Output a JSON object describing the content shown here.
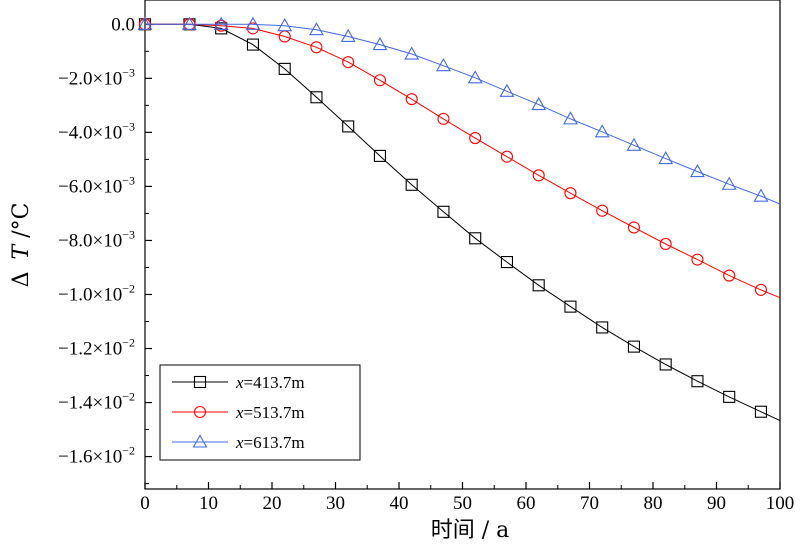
{
  "chart_data": {
    "type": "line",
    "xlabel": "时间 / a",
    "ylabel": {
      "prefix": "Δ",
      "var": "T",
      "unit": "/°C"
    },
    "xlim": [
      0,
      100
    ],
    "ylim": [
      -0.0172,
      0.0009
    ],
    "x_ticks": [
      {
        "v": 0,
        "label": "0"
      },
      {
        "v": 10,
        "label": "10"
      },
      {
        "v": 20,
        "label": "20"
      },
      {
        "v": 30,
        "label": "30"
      },
      {
        "v": 40,
        "label": "40"
      },
      {
        "v": 50,
        "label": "50"
      },
      {
        "v": 60,
        "label": "60"
      },
      {
        "v": 70,
        "label": "70"
      },
      {
        "v": 80,
        "label": "80"
      },
      {
        "v": 90,
        "label": "90"
      },
      {
        "v": 100,
        "label": "100"
      }
    ],
    "y_ticks": [
      {
        "v": 0,
        "label": "0.0",
        "exp": ""
      },
      {
        "v": -0.002,
        "label": "−2.0×10",
        "exp": "−3"
      },
      {
        "v": -0.004,
        "label": "−4.0×10",
        "exp": "−3"
      },
      {
        "v": -0.006,
        "label": "−6.0×10",
        "exp": "−3"
      },
      {
        "v": -0.008,
        "label": "−8.0×10",
        "exp": "−3"
      },
      {
        "v": -0.01,
        "label": "−1.0×10",
        "exp": "−2"
      },
      {
        "v": -0.012,
        "label": "−1.2×10",
        "exp": "−2"
      },
      {
        "v": -0.014,
        "label": "−1.4×10",
        "exp": "−2"
      },
      {
        "v": -0.016,
        "label": "−1.6×10",
        "exp": "−2"
      }
    ],
    "legend_position": "bottom-left",
    "series": [
      {
        "name": "x=413.7m",
        "name_var": "x",
        "name_rest": "=413.7m",
        "color": "#000000",
        "marker": "square",
        "x": [
          0,
          7,
          12,
          17,
          22,
          27,
          32,
          37,
          42,
          47,
          52,
          57,
          62,
          67,
          72,
          77,
          82,
          87,
          92,
          97,
          100
        ],
        "y": [
          0,
          0,
          -0.00015,
          -0.00075,
          -0.00165,
          -0.0027,
          -0.00378,
          -0.00487,
          -0.00594,
          -0.00694,
          -0.00792,
          -0.0088,
          -0.00966,
          -0.01045,
          -0.01122,
          -0.01193,
          -0.01259,
          -0.01321,
          -0.01379,
          -0.01434,
          -0.01467
        ],
        "marked": [
          true,
          true,
          true,
          true,
          true,
          true,
          true,
          true,
          true,
          true,
          true,
          true,
          true,
          true,
          true,
          true,
          true,
          true,
          true,
          true,
          false
        ]
      },
      {
        "name": "x=513.7m",
        "name_var": "x",
        "name_rest": "=513.7m",
        "color": "#ff0000",
        "marker": "circle",
        "x": [
          0,
          7,
          12,
          17,
          22,
          27,
          32,
          37,
          42,
          47,
          52,
          57,
          62,
          67,
          72,
          77,
          82,
          87,
          92,
          97,
          100
        ],
        "y": [
          0,
          0,
          -5e-05,
          -0.00015,
          -0.00045,
          -0.00085,
          -0.0014,
          -0.00207,
          -0.00277,
          -0.0035,
          -0.00421,
          -0.0049,
          -0.00559,
          -0.00625,
          -0.0069,
          -0.00752,
          -0.00813,
          -0.00871,
          -0.0093,
          -0.00983,
          -0.01012
        ],
        "marked": [
          true,
          true,
          true,
          true,
          true,
          true,
          true,
          true,
          true,
          true,
          true,
          true,
          true,
          true,
          true,
          true,
          true,
          true,
          true,
          true,
          false
        ]
      },
      {
        "name": "x=613.7m",
        "name_var": "x",
        "name_rest": "=613.7m",
        "color": "#4169e1",
        "marker": "triangle",
        "x": [
          0,
          7,
          12,
          17,
          22,
          27,
          32,
          37,
          42,
          47,
          52,
          57,
          62,
          67,
          72,
          77,
          82,
          87,
          92,
          97,
          100
        ],
        "y": [
          0,
          0,
          0,
          0,
          -5e-05,
          -0.0002,
          -0.00045,
          -0.00075,
          -0.0011,
          -0.00153,
          -0.00198,
          -0.00248,
          -0.00297,
          -0.0035,
          -0.00398,
          -0.00448,
          -0.00497,
          -0.00545,
          -0.00592,
          -0.00636,
          -0.00665
        ],
        "marked": [
          true,
          true,
          true,
          true,
          true,
          true,
          true,
          true,
          true,
          true,
          true,
          true,
          true,
          true,
          true,
          true,
          true,
          true,
          true,
          true,
          false
        ]
      }
    ]
  }
}
